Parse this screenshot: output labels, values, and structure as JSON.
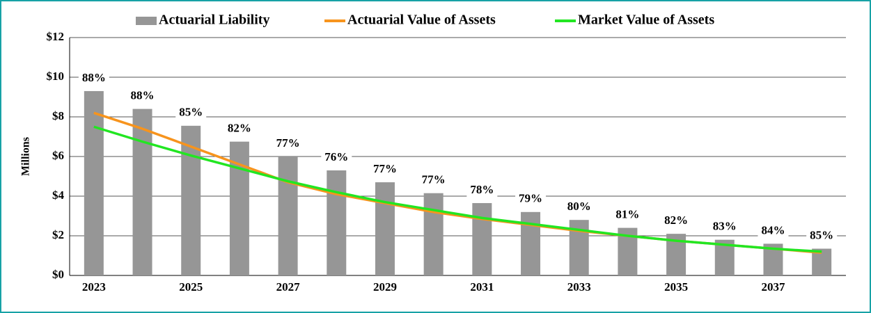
{
  "chart_data": {
    "type": "bar",
    "y_label": "Millions",
    "categories": [
      "2023",
      null,
      "2025",
      null,
      "2027",
      null,
      "2029",
      null,
      "2031",
      null,
      "2033",
      null,
      "2035",
      null,
      "2037",
      null
    ],
    "series": [
      {
        "name": "Actuarial Liability",
        "type": "bar",
        "color": "#969696",
        "values": [
          9.3,
          8.4,
          7.55,
          6.75,
          6.0,
          5.3,
          4.7,
          4.15,
          3.65,
          3.2,
          2.8,
          2.4,
          2.1,
          1.8,
          1.6,
          1.35
        ]
      },
      {
        "name": "Actuarial Value of Assets",
        "type": "line",
        "color": "#f7941d",
        "values": [
          8.2,
          7.4,
          6.5,
          5.6,
          4.7,
          4.1,
          3.65,
          3.2,
          2.85,
          2.55,
          2.25,
          2.0,
          1.75,
          1.55,
          1.35,
          1.15
        ]
      },
      {
        "name": "Market Value of Assets",
        "type": "line",
        "color": "#22e622",
        "values": [
          7.5,
          6.75,
          6.05,
          5.4,
          4.75,
          4.2,
          3.7,
          3.3,
          2.9,
          2.6,
          2.3,
          2.0,
          1.75,
          1.55,
          1.35,
          1.2
        ]
      }
    ],
    "data_labels": [
      "88%",
      "88%",
      "85%",
      "82%",
      "77%",
      "76%",
      "77%",
      "77%",
      "78%",
      "79%",
      "80%",
      "81%",
      "82%",
      "83%",
      "84%",
      "85%"
    ],
    "ylim": [
      0,
      12
    ],
    "yticks": [
      {
        "value": 0,
        "label": "$0"
      },
      {
        "value": 2,
        "label": "$2"
      },
      {
        "value": 4,
        "label": "$4"
      },
      {
        "value": 6,
        "label": "$6"
      },
      {
        "value": 8,
        "label": "$8"
      },
      {
        "value": 10,
        "label": "$10"
      },
      {
        "value": 12,
        "label": "$12"
      }
    ],
    "grid": true,
    "legend": "top"
  }
}
